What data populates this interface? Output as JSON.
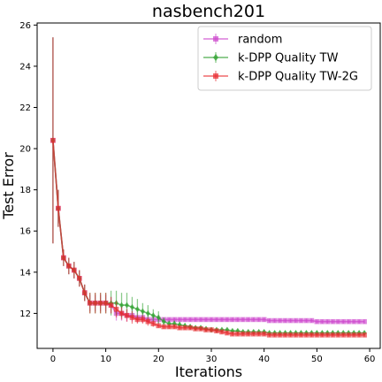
{
  "chart_data": {
    "type": "line",
    "title": "nasbench201",
    "xlabel": "Iterations",
    "ylabel": "Test Error",
    "xlim": [
      -3,
      62
    ],
    "ylim": [
      10.3,
      26.1
    ],
    "xticks": [
      0,
      10,
      20,
      30,
      40,
      50,
      60
    ],
    "yticks": [
      12,
      14,
      16,
      18,
      20,
      22,
      24,
      26
    ],
    "grid": false,
    "legend_position": "top-right",
    "series": [
      {
        "name": "random",
        "color": "#cc44cc",
        "marker": "square",
        "x": [
          0,
          1,
          2,
          3,
          4,
          5,
          6,
          7,
          8,
          9,
          10,
          11,
          12,
          13,
          14,
          15,
          16,
          17,
          18,
          19,
          20,
          21,
          22,
          23,
          24,
          25,
          26,
          27,
          28,
          29,
          30,
          31,
          32,
          33,
          34,
          35,
          36,
          37,
          38,
          39,
          40,
          41,
          42,
          43,
          44,
          45,
          46,
          47,
          48,
          49,
          50,
          51,
          52,
          53,
          54,
          55,
          56,
          57,
          58,
          59
        ],
        "y": [
          20.4,
          17.1,
          14.7,
          14.3,
          14.1,
          13.7,
          13.0,
          12.5,
          12.5,
          12.5,
          12.5,
          12.4,
          12.0,
          12.0,
          11.9,
          11.9,
          11.8,
          11.8,
          11.7,
          11.7,
          11.7,
          11.7,
          11.7,
          11.7,
          11.7,
          11.7,
          11.7,
          11.7,
          11.7,
          11.7,
          11.7,
          11.7,
          11.7,
          11.7,
          11.7,
          11.7,
          11.7,
          11.7,
          11.7,
          11.7,
          11.7,
          11.65,
          11.65,
          11.65,
          11.65,
          11.65,
          11.65,
          11.65,
          11.65,
          11.65,
          11.6,
          11.6,
          11.6,
          11.6,
          11.6,
          11.6,
          11.6,
          11.6,
          11.6,
          11.6
        ],
        "err": [
          5.0,
          0.9,
          0.4,
          0.4,
          0.4,
          0.4,
          0.4,
          0.4,
          0.4,
          0.4,
          0.4,
          0.4,
          0.35,
          0.35,
          0.3,
          0.3,
          0.25,
          0.25,
          0.2,
          0.2,
          0.2,
          0.1,
          0.1,
          0.1,
          0.1,
          0.1,
          0.1,
          0.1,
          0.1,
          0.1,
          0.1,
          0.1,
          0.1,
          0.1,
          0.1,
          0.1,
          0.1,
          0.1,
          0.1,
          0.1,
          0.1,
          0.1,
          0.1,
          0.1,
          0.1,
          0.1,
          0.1,
          0.1,
          0.1,
          0.1,
          0.1,
          0.1,
          0.1,
          0.1,
          0.1,
          0.1,
          0.1,
          0.1,
          0.1,
          0.1
        ]
      },
      {
        "name": "k-DPP Quality TW",
        "color": "#2ca02c",
        "marker": "diamond",
        "x": [
          0,
          1,
          2,
          3,
          4,
          5,
          6,
          7,
          8,
          9,
          10,
          11,
          12,
          13,
          14,
          15,
          16,
          17,
          18,
          19,
          20,
          21,
          22,
          23,
          24,
          25,
          26,
          27,
          28,
          29,
          30,
          31,
          32,
          33,
          34,
          35,
          36,
          37,
          38,
          39,
          40,
          41,
          42,
          43,
          44,
          45,
          46,
          47,
          48,
          49,
          50,
          51,
          52,
          53,
          54,
          55,
          56,
          57,
          58,
          59
        ],
        "y": [
          20.4,
          17.1,
          14.7,
          14.3,
          14.1,
          13.7,
          13.0,
          12.5,
          12.5,
          12.5,
          12.5,
          12.5,
          12.5,
          12.4,
          12.4,
          12.3,
          12.2,
          12.1,
          12.0,
          11.9,
          11.8,
          11.6,
          11.5,
          11.5,
          11.45,
          11.4,
          11.35,
          11.3,
          11.3,
          11.25,
          11.2,
          11.2,
          11.2,
          11.2,
          11.15,
          11.15,
          11.1,
          11.1,
          11.1,
          11.1,
          11.1,
          11.05,
          11.05,
          11.05,
          11.05,
          11.05,
          11.05,
          11.05,
          11.05,
          11.05,
          11.05,
          11.05,
          11.05,
          11.05,
          11.05,
          11.05,
          11.05,
          11.05,
          11.05,
          11.05
        ],
        "err": [
          5.0,
          0.9,
          0.4,
          0.4,
          0.4,
          0.4,
          0.4,
          0.5,
          0.5,
          0.5,
          0.5,
          0.6,
          0.6,
          0.6,
          0.6,
          0.5,
          0.5,
          0.4,
          0.4,
          0.3,
          0.3,
          0.2,
          0.15,
          0.15,
          0.15,
          0.12,
          0.12,
          0.1,
          0.1,
          0.1,
          0.1,
          0.1,
          0.1,
          0.1,
          0.1,
          0.1,
          0.1,
          0.1,
          0.1,
          0.1,
          0.1,
          0.1,
          0.1,
          0.1,
          0.1,
          0.1,
          0.1,
          0.1,
          0.1,
          0.1,
          0.1,
          0.1,
          0.1,
          0.1,
          0.1,
          0.1,
          0.1,
          0.1,
          0.1,
          0.1
        ]
      },
      {
        "name": "k-DPP Quality TW-2G",
        "color": "#e8282d",
        "marker": "square",
        "x": [
          0,
          1,
          2,
          3,
          4,
          5,
          6,
          7,
          8,
          9,
          10,
          11,
          12,
          13,
          14,
          15,
          16,
          17,
          18,
          19,
          20,
          21,
          22,
          23,
          24,
          25,
          26,
          27,
          28,
          29,
          30,
          31,
          32,
          33,
          34,
          35,
          36,
          37,
          38,
          39,
          40,
          41,
          42,
          43,
          44,
          45,
          46,
          47,
          48,
          49,
          50,
          51,
          52,
          53,
          54,
          55,
          56,
          57,
          58,
          59
        ],
        "y": [
          20.4,
          17.1,
          14.7,
          14.3,
          14.1,
          13.7,
          13.0,
          12.5,
          12.5,
          12.5,
          12.5,
          12.4,
          12.2,
          12.0,
          11.9,
          11.8,
          11.7,
          11.7,
          11.6,
          11.5,
          11.4,
          11.35,
          11.35,
          11.35,
          11.3,
          11.3,
          11.3,
          11.25,
          11.25,
          11.2,
          11.2,
          11.15,
          11.1,
          11.05,
          11.0,
          11.0,
          11.0,
          11.0,
          11.0,
          11.0,
          11.0,
          10.95,
          10.95,
          10.95,
          10.95,
          10.95,
          10.95,
          10.95,
          10.95,
          10.95,
          10.95,
          10.95,
          10.95,
          10.95,
          10.95,
          10.95,
          10.95,
          10.95,
          10.95,
          10.95
        ],
        "err": [
          5.0,
          0.9,
          0.4,
          0.4,
          0.4,
          0.4,
          0.4,
          0.5,
          0.5,
          0.5,
          0.5,
          0.4,
          0.4,
          0.3,
          0.3,
          0.3,
          0.2,
          0.2,
          0.2,
          0.15,
          0.1,
          0.1,
          0.1,
          0.1,
          0.1,
          0.1,
          0.1,
          0.1,
          0.1,
          0.1,
          0.1,
          0.1,
          0.1,
          0.1,
          0.1,
          0.1,
          0.1,
          0.1,
          0.1,
          0.1,
          0.1,
          0.1,
          0.1,
          0.1,
          0.1,
          0.1,
          0.1,
          0.1,
          0.1,
          0.1,
          0.1,
          0.1,
          0.1,
          0.1,
          0.1,
          0.1,
          0.1,
          0.1,
          0.1,
          0.1
        ]
      }
    ]
  }
}
